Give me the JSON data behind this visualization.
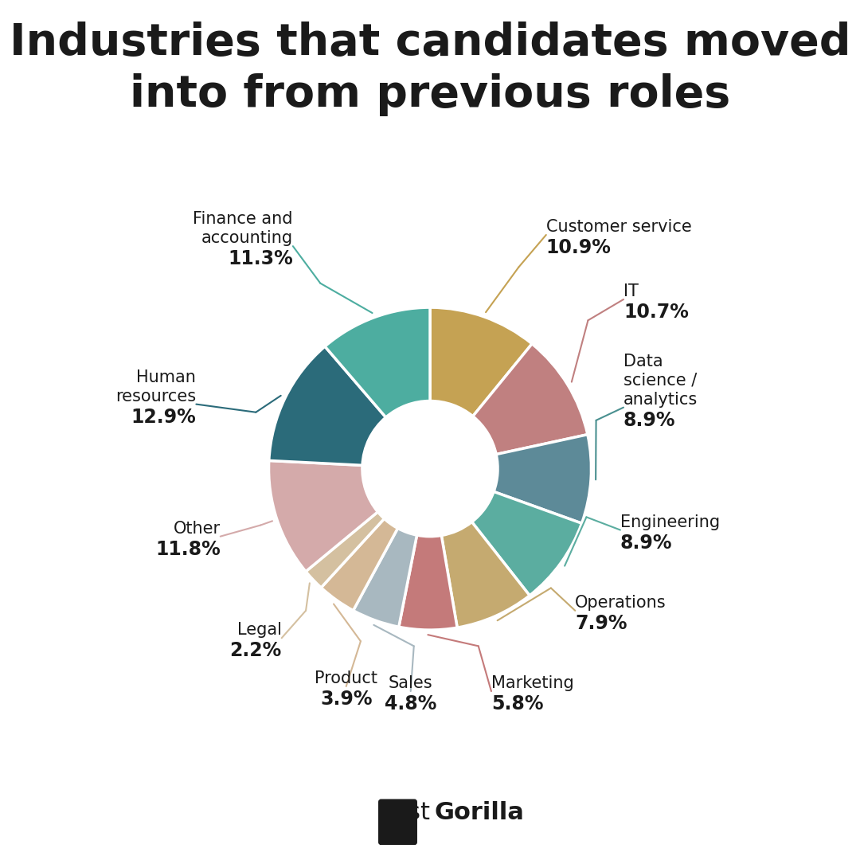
{
  "title": "Industries that candidates moved\ninto from previous roles",
  "segments": [
    {
      "label": "Customer service",
      "value": 10.9,
      "color": "#C5A253",
      "line_color": "#C5A253"
    },
    {
      "label": "IT",
      "value": 10.7,
      "color": "#C08080",
      "line_color": "#C08080"
    },
    {
      "label": "Data\nscience /\nanalytics",
      "value": 8.9,
      "color": "#5D8A98",
      "line_color": "#4A9090"
    },
    {
      "label": "Engineering",
      "value": 8.9,
      "color": "#5BADA0",
      "line_color": "#5BADA0"
    },
    {
      "label": "Operations",
      "value": 7.9,
      "color": "#C5AA70",
      "line_color": "#C5AA70"
    },
    {
      "label": "Marketing",
      "value": 5.8,
      "color": "#C47A7A",
      "line_color": "#C47A7A"
    },
    {
      "label": "Sales",
      "value": 4.8,
      "color": "#A8B8C0",
      "line_color": "#A8B8C0"
    },
    {
      "label": "Product",
      "value": 3.9,
      "color": "#D4B896",
      "line_color": "#D4B896"
    },
    {
      "label": "Legal",
      "value": 2.2,
      "color": "#D4C0A0",
      "line_color": "#D4C0A0"
    },
    {
      "label": "Other",
      "value": 11.8,
      "color": "#D4AAAA",
      "line_color": "#D4AAAA"
    },
    {
      "label": "Human\nresources",
      "value": 12.9,
      "color": "#2B6B7A",
      "line_color": "#2B6B7A"
    },
    {
      "label": "Finance and\naccounting",
      "value": 11.3,
      "color": "#4DADA0",
      "line_color": "#4DADA0"
    }
  ],
  "background_color": "#FFFFFF",
  "outer_r": 1.0,
  "inner_r": 0.42,
  "label_font_size": 15,
  "pct_font_size": 17,
  "title_font_size": 40
}
